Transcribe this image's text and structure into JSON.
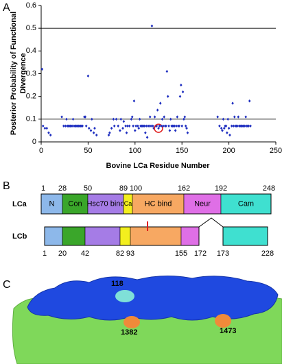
{
  "panel_labels": [
    "A",
    "B",
    "C"
  ],
  "chart_data": {
    "type": "scatter",
    "xlabel": "Bovine LCa Residue Number",
    "ylabel": [
      "Posterior Probability of Functional",
      "Divergence"
    ],
    "xlim": [
      0,
      250
    ],
    "xticks": [
      0,
      50,
      100,
      150,
      200,
      250
    ],
    "ylim": [
      0,
      0.6
    ],
    "yticks": [
      0,
      0.1,
      0.2,
      0.3,
      0.4,
      0.5,
      0.6
    ],
    "reference_lines": [
      0.1,
      0.5
    ],
    "highlight_index": 80,
    "highlight_color": "#e02020",
    "series": [
      {
        "color": "#1f2fc0",
        "x": [
          1,
          2,
          4,
          6,
          8,
          10,
          22,
          24,
          26,
          27,
          28,
          29,
          30,
          31,
          32,
          33,
          34,
          35,
          36,
          37,
          38,
          39,
          40,
          41,
          42,
          43,
          44,
          46,
          47,
          48,
          50,
          51,
          53,
          54,
          56,
          57,
          59,
          72,
          73,
          75,
          77,
          78,
          80,
          82,
          84,
          85,
          87,
          88,
          90,
          91,
          92,
          94,
          96,
          97,
          98,
          99,
          100,
          101,
          103,
          104,
          105,
          106,
          107,
          108,
          109,
          110,
          111,
          112,
          113,
          114,
          115,
          116,
          117,
          118,
          119,
          120,
          121,
          122,
          123,
          124,
          125,
          126,
          127,
          128,
          129,
          130,
          131,
          132,
          133,
          134,
          135,
          136,
          137,
          138,
          139,
          140,
          141,
          142,
          143,
          144,
          145,
          146,
          147,
          148,
          149,
          150,
          151,
          152,
          153,
          154,
          155,
          156,
          188,
          190,
          192,
          193,
          194,
          195,
          196,
          197,
          198,
          199,
          200,
          201,
          203,
          204,
          205,
          206,
          207,
          208,
          209,
          210,
          211,
          212,
          213,
          214,
          215,
          216,
          217,
          218,
          219,
          220,
          221,
          222,
          223
        ],
        "y": [
          0.32,
          0.07,
          0.06,
          0.06,
          0.04,
          0.03,
          0.11,
          0.07,
          0.07,
          0.1,
          0.07,
          0.07,
          0.07,
          0.07,
          0.07,
          0.07,
          0.1,
          0.07,
          0.07,
          0.07,
          0.07,
          0.07,
          0.07,
          0.07,
          0.07,
          0.07,
          0.07,
          0.11,
          0.11,
          0.07,
          0.29,
          0.06,
          0.05,
          0.1,
          0.04,
          0.06,
          0.03,
          0.03,
          0.04,
          0.06,
          0.1,
          0.07,
          0.1,
          0.07,
          0.05,
          0.1,
          0.06,
          0.09,
          0.07,
          0.04,
          0.07,
          0.07,
          0.1,
          0.11,
          0.07,
          0.18,
          0.05,
          0.07,
          0.07,
          0.06,
          0.1,
          0.07,
          0.07,
          0.07,
          0.07,
          0.07,
          0.04,
          0.07,
          0.02,
          0.07,
          0.07,
          0.11,
          0.07,
          0.51,
          0.07,
          0.06,
          0.11,
          0.07,
          0.07,
          0.14,
          0.06,
          0.07,
          0.17,
          0.07,
          0.1,
          0.07,
          0.11,
          0.07,
          0.07,
          0.31,
          0.2,
          0.07,
          0.05,
          0.1,
          0.07,
          0.07,
          0.07,
          0.07,
          0.05,
          0.07,
          0.11,
          0.07,
          0.07,
          0.2,
          0.25,
          0.07,
          0.22,
          0.1,
          0.11,
          0.07,
          0.06,
          0.04,
          0.11,
          0.07,
          0.06,
          0.05,
          0.1,
          0.06,
          0.07,
          0.07,
          0.04,
          0.1,
          0.06,
          0.03,
          0.07,
          0.17,
          0.07,
          0.11,
          0.07,
          0.07,
          0.07,
          0.11,
          0.07,
          0.07,
          0.07,
          0.07,
          0.07,
          0.07,
          0.07,
          0.11,
          0.07,
          0.07,
          0.07,
          0.18,
          0.07
        ]
      }
    ]
  },
  "domain_map": {
    "domains": [
      "N",
      "Con",
      "Hsc70 bind",
      "Ca",
      "HC bind",
      "Neur",
      "Cam"
    ],
    "domain_colors": [
      "#8db8ea",
      "#3aa62a",
      "#a57ce6",
      "#f3ef1e",
      "#f7a862",
      "#df6fe6",
      "#3fe0d0"
    ],
    "rows": [
      {
        "label": "LCa",
        "boundaries": [
          1,
          28,
          50,
          89,
          100,
          162,
          192,
          248
        ]
      },
      {
        "label": "LCb",
        "boundaries": [
          1,
          20,
          42,
          82,
          93,
          155,
          172,
          173,
          228
        ]
      }
    ],
    "site_color": "#e02020"
  },
  "structure": {
    "labels": [
      "118",
      "1382",
      "1473"
    ]
  }
}
